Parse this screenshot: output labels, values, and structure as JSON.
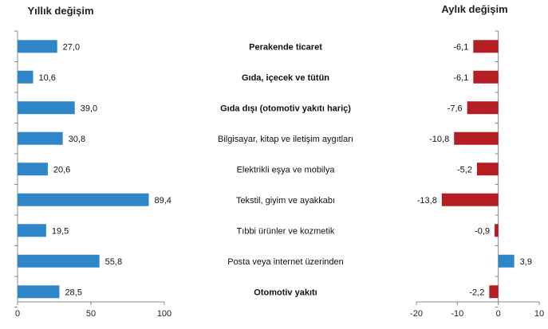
{
  "chart_data": [
    {
      "type": "bar",
      "orientation": "horizontal",
      "title": "Yıllık değişim",
      "categories": [
        "Perakende ticaret",
        "Gıda, içecek ve tütün",
        "Gıda dışı (otomotiv yakıtı hariç)",
        "Bilgisayar, kitap ve iletişim aygıtları",
        "Elektrikli eşya ve mobilya",
        "Tekstil, giyim ve ayakkabı",
        "Tıbbi ürünler ve kozmetik",
        "Posta veya internet üzerinden",
        "Otomotiv yakıtı"
      ],
      "bold_categories": [
        "Perakende ticaret",
        "Gıda, içecek ve tütün",
        "Gıda dışı (otomotiv yakıtı hariç)",
        "Otomotiv yakıtı"
      ],
      "values": [
        27.0,
        10.6,
        39.0,
        30.8,
        20.6,
        89.4,
        19.5,
        55.8,
        28.5
      ],
      "value_labels": [
        "27,0",
        "10,6",
        "39,0",
        "30,8",
        "20,6",
        "89,4",
        "19,5",
        "55,8",
        "28,5"
      ],
      "xlim": [
        0,
        100
      ],
      "xticks": [
        0,
        50,
        100
      ],
      "xtick_labels": [
        "0",
        "50",
        "100"
      ],
      "color": "#2e86c8",
      "grid": false
    },
    {
      "type": "bar",
      "orientation": "horizontal",
      "title": "Aylık değişim",
      "categories": [
        "Perakende ticaret",
        "Gıda, içecek ve tütün",
        "Gıda dışı (otomotiv yakıtı hariç)",
        "Bilgisayar, kitap ve iletişim aygıtları",
        "Elektrikli eşya ve mobilya",
        "Tekstil, giyim ve ayakkabı",
        "Tıbbi ürünler ve kozmetik",
        "Posta veya internet üzerinden",
        "Otomotiv yakıtı"
      ],
      "values": [
        -6.1,
        -6.1,
        -7.6,
        -10.8,
        -5.2,
        -13.8,
        -0.9,
        3.9,
        -2.2
      ],
      "value_labels": [
        "-6,1",
        "-6,1",
        "-7,6",
        "-10,8",
        "-5,2",
        "-13,8",
        "-0,9",
        "3,9",
        "-2,2"
      ],
      "xlim": [
        -20,
        10
      ],
      "xticks": [
        -20,
        -10,
        0,
        10
      ],
      "xtick_labels": [
        "-20",
        "-10",
        "0",
        "10"
      ],
      "negative_color": "#b41e23",
      "positive_color": "#2e86c8",
      "grid": false
    }
  ]
}
